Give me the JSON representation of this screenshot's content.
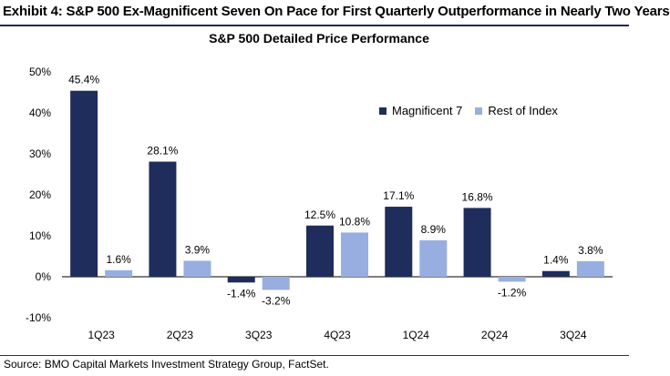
{
  "header": {
    "exhibit_title": "Exhibit 4: S&P 500 Ex-Magnificent Seven On Pace for First Quarterly Outperformance in Nearly Two Years",
    "chart_title": "S&P 500 Detailed Price Performance"
  },
  "footer": {
    "source": "Source: BMO Capital Markets Investment Strategy Group, FactSet."
  },
  "colors": {
    "mag7": "#1f2d5c",
    "rest": "#98aee0",
    "axis": "#000000"
  },
  "chart_data": {
    "type": "bar",
    "title": "S&P 500 Detailed Price Performance",
    "xlabel": "",
    "ylabel": "",
    "ylim": [
      -10,
      50
    ],
    "yticks": [
      -10,
      0,
      10,
      20,
      30,
      40,
      50
    ],
    "ytick_labels": [
      "-10%",
      "0%",
      "10%",
      "20%",
      "30%",
      "40%",
      "50%"
    ],
    "categories": [
      "1Q23",
      "2Q23",
      "3Q23",
      "4Q23",
      "1Q24",
      "2Q24",
      "3Q24"
    ],
    "series": [
      {
        "name": "Magnificent 7",
        "values": [
          45.4,
          28.1,
          -1.4,
          12.5,
          17.1,
          16.8,
          1.4
        ],
        "labels": [
          "45.4%",
          "28.1%",
          "-1.4%",
          "12.5%",
          "17.1%",
          "16.8%",
          "1.4%"
        ]
      },
      {
        "name": "Rest of Index",
        "values": [
          1.6,
          3.9,
          -3.2,
          10.8,
          8.9,
          -1.2,
          3.8
        ],
        "labels": [
          "1.6%",
          "3.9%",
          "-3.2%",
          "10.8%",
          "8.9%",
          "-1.2%",
          "3.8%"
        ]
      }
    ],
    "legend_position": "top-right",
    "grid": false
  }
}
